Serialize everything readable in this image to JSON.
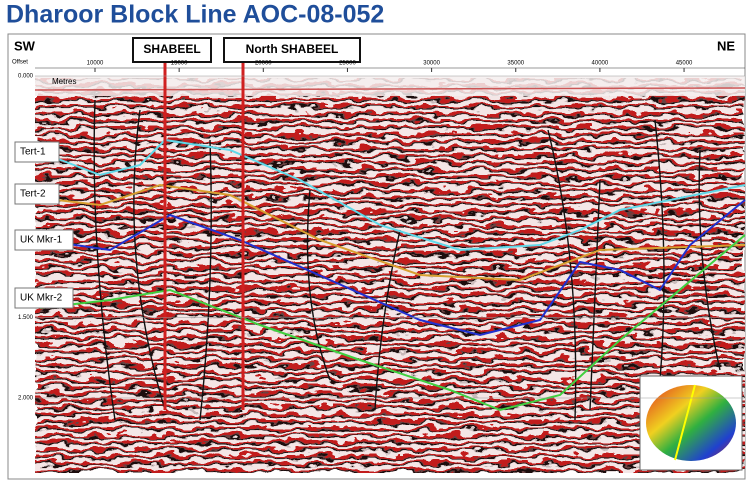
{
  "header": {
    "title": "Dharoor Block Line AOC-08-052"
  },
  "section": {
    "left_direction": "SW",
    "right_direction": "NE",
    "offset_label": "Offset",
    "depth_unit": "Metres",
    "offset_ticks": [
      10000,
      15000,
      20000,
      25000,
      30000,
      35000,
      40000,
      45000
    ],
    "time_ticks": [
      {
        "value": 0,
        "label": "0.000"
      },
      {
        "value": 1.5,
        "label": "1.500"
      },
      {
        "value": 2,
        "label": "2.000"
      }
    ],
    "wells": [
      "SHABEEL",
      "North SHABEEL"
    ],
    "horizons": [
      "Tert-1",
      "Tert-2",
      "UK Mkr-1",
      "UK Mkr-2"
    ]
  }
}
